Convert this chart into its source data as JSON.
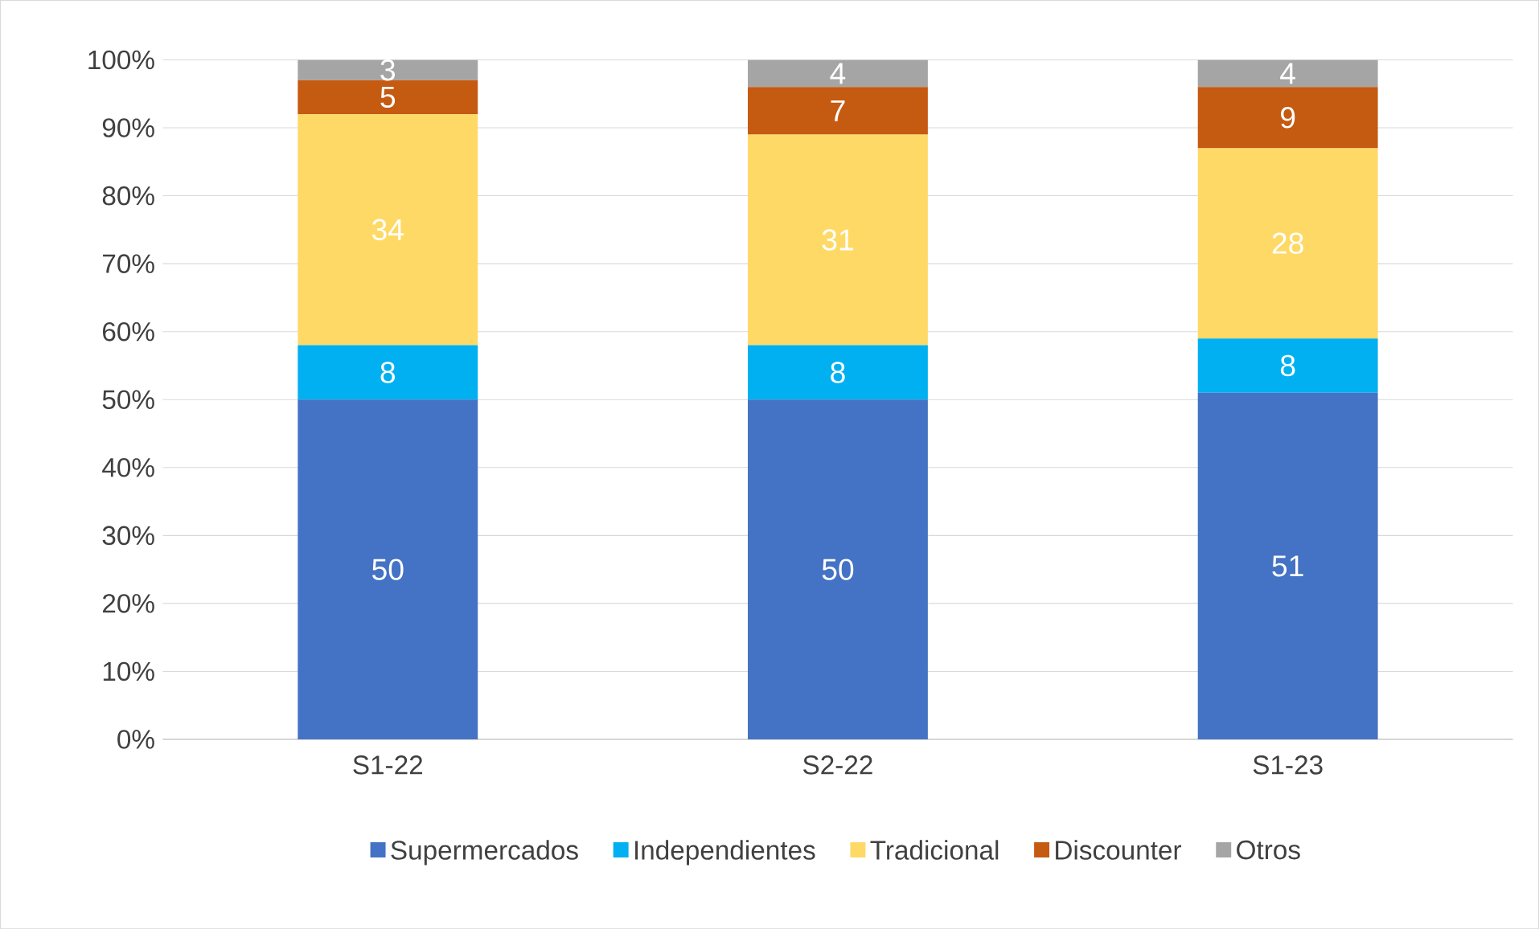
{
  "chart_data": {
    "type": "bar",
    "stacked": true,
    "categories": [
      "S1-22",
      "S2-22",
      "S1-23"
    ],
    "series": [
      {
        "name": "Supermercados",
        "color": "#4472c4",
        "values": [
          50,
          50,
          51
        ]
      },
      {
        "name": "Independientes",
        "color": "#00b0f0",
        "values": [
          8,
          8,
          8
        ]
      },
      {
        "name": "Tradicional",
        "color": "#ffd966",
        "values": [
          34,
          31,
          28
        ]
      },
      {
        "name": "Discounter",
        "color": "#c55a11",
        "values": [
          5,
          7,
          9
        ]
      },
      {
        "name": "Otros",
        "color": "#a5a5a5",
        "values": [
          3,
          4,
          4
        ]
      }
    ],
    "ylim": [
      0,
      100
    ],
    "yticks": [
      {
        "value": 0,
        "label": "0%"
      },
      {
        "value": 10,
        "label": "10%"
      },
      {
        "value": 20,
        "label": "20%"
      },
      {
        "value": 30,
        "label": "30%"
      },
      {
        "value": 40,
        "label": "40%"
      },
      {
        "value": 50,
        "label": "50%"
      },
      {
        "value": 60,
        "label": "60%"
      },
      {
        "value": 70,
        "label": "70%"
      },
      {
        "value": 80,
        "label": "80%"
      },
      {
        "value": 90,
        "label": "90%"
      },
      {
        "value": 100,
        "label": "100%"
      }
    ],
    "grid": "y",
    "legend": "bottom",
    "data_labels": true
  }
}
